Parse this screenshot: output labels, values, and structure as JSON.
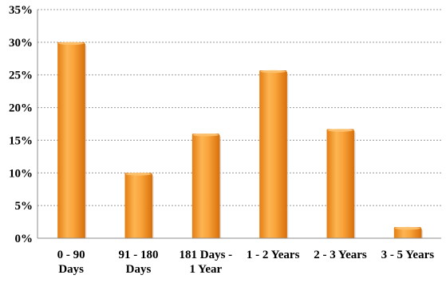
{
  "chart_data": {
    "type": "bar",
    "categories": [
      [
        "0 - 90",
        "Days"
      ],
      [
        "91 - 180",
        "Days"
      ],
      [
        "181 Days -",
        "1 Year"
      ],
      [
        "1 - 2 Years"
      ],
      [
        "2 - 3 Years"
      ],
      [
        "3 - 5 Years"
      ]
    ],
    "values": [
      30,
      10,
      16,
      25.7,
      16.7,
      1.7
    ],
    "ylim": [
      0,
      35
    ],
    "yticks": [
      "0%",
      "5%",
      "10%",
      "15%",
      "20%",
      "25%",
      "30%",
      "35%"
    ],
    "ytick_values": [
      0,
      5,
      10,
      15,
      20,
      25,
      30,
      35
    ],
    "grid": true,
    "bar_color": "#f7941d",
    "bar_highlight": "#fcc271",
    "bar_shadow": "#d9720c"
  }
}
